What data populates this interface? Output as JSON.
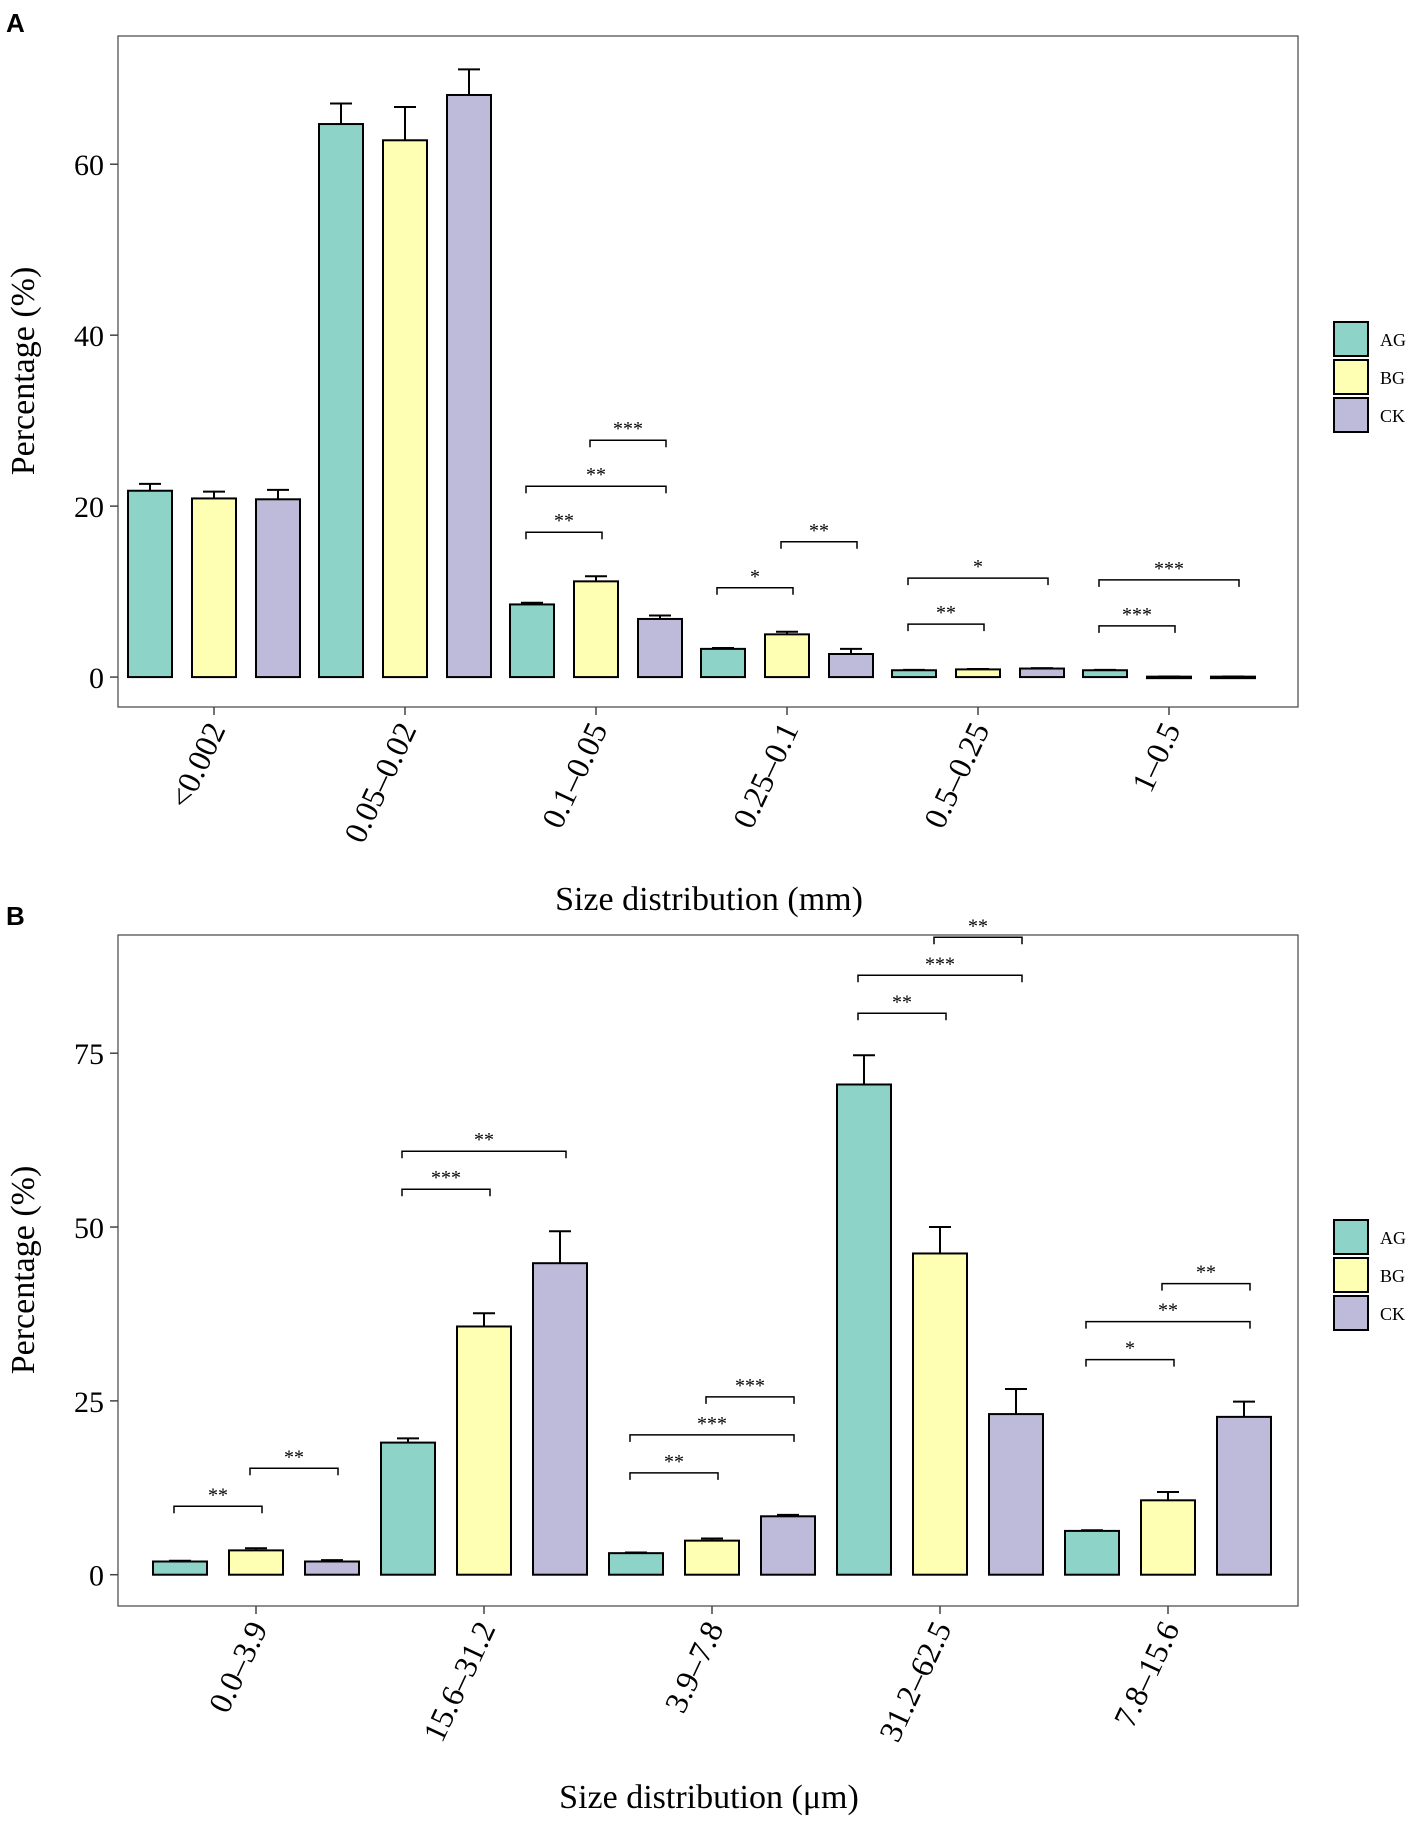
{
  "colors": {
    "AG": "#8dd3c7",
    "BG": "#ffffb3",
    "CK": "#bebada"
  },
  "chart_data": [
    {
      "panel": "A",
      "type": "bar",
      "xlabel": "Size distribution (mm)",
      "ylabel": "Percentage (%)",
      "ylim": [
        -3.5,
        75
      ],
      "yticks": [
        0,
        20,
        40,
        60
      ],
      "legend": "right",
      "categories": [
        "<0.002",
        "0.05–0.02",
        "0.1–0.05",
        "0.25–0.1",
        "0.5–0.25",
        "1–0.5"
      ],
      "series": [
        {
          "name": "AG",
          "values": [
            21.8,
            64.7,
            8.5,
            3.3,
            0.8,
            0.8
          ],
          "errors": [
            0.8,
            2.4,
            0.2,
            0.1,
            0.05,
            0.05
          ]
        },
        {
          "name": "BG",
          "values": [
            20.9,
            62.8,
            11.2,
            5.0,
            0.9,
            0.05
          ],
          "errors": [
            0.8,
            3.9,
            0.6,
            0.3,
            0.05,
            0.02
          ]
        },
        {
          "name": "CK",
          "values": [
            20.8,
            68.1,
            6.8,
            2.7,
            1.0,
            0.05
          ],
          "errors": [
            1.1,
            3.0,
            0.4,
            0.6,
            0.05,
            0.02
          ]
        }
      ],
      "significance": [
        {
          "cat": 2,
          "from": 0,
          "to": 1,
          "level": 0,
          "label": "**"
        },
        {
          "cat": 2,
          "from": 0,
          "to": 2,
          "level": 1,
          "label": "**"
        },
        {
          "cat": 2,
          "from": 1,
          "to": 2,
          "level": 2,
          "label": "***"
        },
        {
          "cat": 3,
          "from": 0,
          "to": 1,
          "level": 0,
          "label": "*"
        },
        {
          "cat": 3,
          "from": 1,
          "to": 2,
          "level": 1,
          "label": "**"
        },
        {
          "cat": 4,
          "from": 0,
          "to": 1,
          "level": 0,
          "label": "**"
        },
        {
          "cat": 4,
          "from": 0,
          "to": 2,
          "level": 1,
          "label": "*"
        },
        {
          "cat": 5,
          "from": 0,
          "to": 1,
          "level": 0,
          "label": "***"
        },
        {
          "cat": 5,
          "from": 0,
          "to": 2,
          "level": 1,
          "label": "***"
        }
      ]
    },
    {
      "panel": "B",
      "type": "bar",
      "xlabel": "Size distribution (μm)",
      "ylabel": "Percentage (%)",
      "ylim": [
        -4.5,
        92
      ],
      "yticks": [
        0,
        25,
        50,
        75
      ],
      "legend": "right",
      "categories": [
        "0.0–3.9",
        "15.6–31.2",
        "3.9–7.8",
        "31.2–62.5",
        "7.8–15.6"
      ],
      "series": [
        {
          "name": "AG",
          "values": [
            1.9,
            19.0,
            3.1,
            70.5,
            6.3
          ],
          "errors": [
            0.1,
            0.6,
            0.1,
            4.2,
            0.1
          ]
        },
        {
          "name": "BG",
          "values": [
            3.5,
            35.7,
            4.9,
            46.2,
            10.7
          ],
          "errors": [
            0.3,
            1.9,
            0.3,
            3.8,
            1.2
          ]
        },
        {
          "name": "CK",
          "values": [
            1.9,
            44.8,
            8.4,
            23.1,
            22.7
          ],
          "errors": [
            0.2,
            4.6,
            0.2,
            3.6,
            2.2
          ]
        }
      ],
      "significance": [
        {
          "cat": 0,
          "from": 0,
          "to": 1,
          "level": 0,
          "label": "**"
        },
        {
          "cat": 0,
          "from": 1,
          "to": 2,
          "level": 1,
          "label": "**"
        },
        {
          "cat": 1,
          "from": 0,
          "to": 1,
          "level": 0,
          "label": "***"
        },
        {
          "cat": 1,
          "from": 0,
          "to": 2,
          "level": 1,
          "label": "**"
        },
        {
          "cat": 2,
          "from": 0,
          "to": 1,
          "level": 0,
          "label": "**"
        },
        {
          "cat": 2,
          "from": 0,
          "to": 2,
          "level": 1,
          "label": "***"
        },
        {
          "cat": 2,
          "from": 1,
          "to": 2,
          "level": 2,
          "label": "***"
        },
        {
          "cat": 3,
          "from": 0,
          "to": 1,
          "level": 0,
          "label": "**"
        },
        {
          "cat": 3,
          "from": 0,
          "to": 2,
          "level": 1,
          "label": "***"
        },
        {
          "cat": 3,
          "from": 1,
          "to": 2,
          "level": 2,
          "label": "**"
        },
        {
          "cat": 4,
          "from": 0,
          "to": 1,
          "level": 0,
          "label": "*"
        },
        {
          "cat": 4,
          "from": 0,
          "to": 2,
          "level": 1,
          "label": "**"
        },
        {
          "cat": 4,
          "from": 1,
          "to": 2,
          "level": 2,
          "label": "**"
        }
      ]
    }
  ]
}
